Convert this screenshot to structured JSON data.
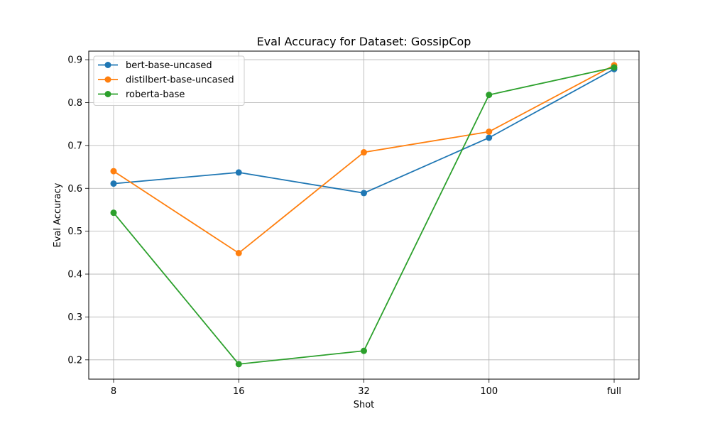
{
  "chart_data": {
    "type": "line",
    "title": "Eval Accuracy for Dataset: GossipCop",
    "xlabel": "Shot",
    "ylabel": "Eval Accuracy",
    "categories": [
      "8",
      "16",
      "32",
      "100",
      "full"
    ],
    "yticks": [
      "0.2",
      "0.3",
      "0.4",
      "0.5",
      "0.6",
      "0.7",
      "0.8",
      "0.9"
    ],
    "ylim": [
      0.155,
      0.92
    ],
    "grid": true,
    "legend_position": "top-left",
    "series": [
      {
        "name": "bert-base-uncased",
        "color": "#1f77b4",
        "values": [
          0.611,
          0.637,
          0.589,
          0.718,
          0.878
        ]
      },
      {
        "name": "distilbert-base-uncased",
        "color": "#ff7f0e",
        "values": [
          0.64,
          0.449,
          0.684,
          0.732,
          0.887
        ]
      },
      {
        "name": "roberta-base",
        "color": "#2ca02c",
        "values": [
          0.543,
          0.19,
          0.221,
          0.818,
          0.882
        ]
      }
    ]
  }
}
